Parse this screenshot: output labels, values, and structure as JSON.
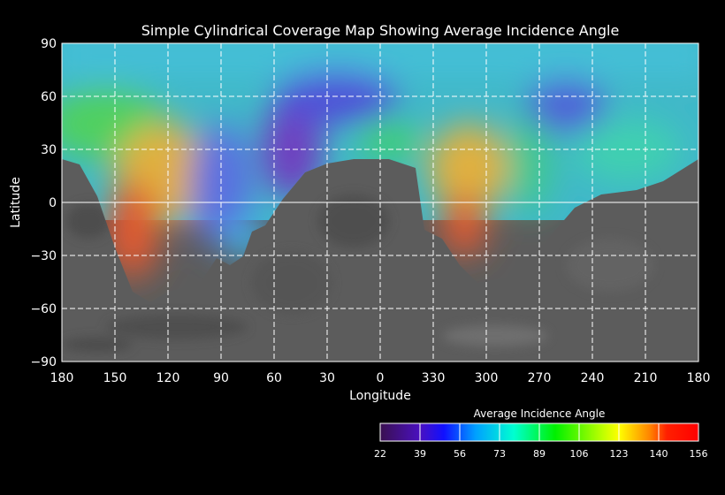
{
  "chart_data": {
    "type": "heatmap",
    "title": "Simple Cylindrical Coverage Map Showing Average Incidence Angle",
    "xlabel": "Longitude",
    "ylabel": "Latitude",
    "x_ticks": [
      "180",
      "150",
      "120",
      "90",
      "60",
      "30",
      "0",
      "330",
      "300",
      "270",
      "240",
      "210",
      "180"
    ],
    "y_ticks": [
      "90",
      "60",
      "30",
      "0",
      "−30",
      "−60",
      "−90"
    ],
    "ylim": [
      -90,
      90
    ],
    "grid": true,
    "colorbar": {
      "title": "Average Incidence Angle",
      "ticks": [
        "22",
        "39",
        "56",
        "73",
        "89",
        "106",
        "123",
        "140",
        "156"
      ],
      "range": [
        22,
        156
      ],
      "colors": [
        "#3a1050",
        "#2020f0",
        "#00a0ff",
        "#00ffc0",
        "#00f000",
        "#e0ff00",
        "#ff8000",
        "#ff1010"
      ]
    }
  }
}
